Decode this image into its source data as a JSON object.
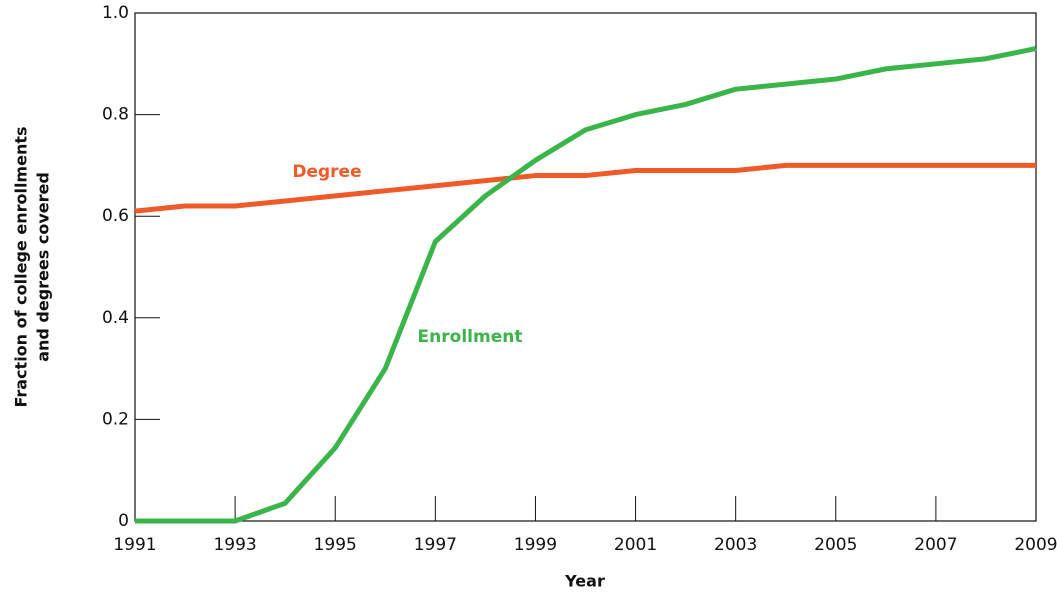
{
  "chart_data": {
    "type": "line",
    "xlabel": "Year",
    "ylabel": [
      "Fraction of college enrollments",
      "and degrees covered"
    ],
    "x": [
      1991,
      1992,
      1993,
      1994,
      1995,
      1996,
      1997,
      1998,
      1999,
      2000,
      2001,
      2002,
      2003,
      2004,
      2005,
      2006,
      2007,
      2008,
      2009
    ],
    "series": [
      {
        "name": "Degree",
        "color": "#ef5a28",
        "values": [
          0.61,
          0.62,
          0.62,
          0.63,
          0.64,
          0.65,
          0.66,
          0.67,
          0.68,
          0.68,
          0.69,
          0.69,
          0.69,
          0.7,
          0.7,
          0.7,
          0.7,
          0.7,
          0.7
        ]
      },
      {
        "name": "Enrollment",
        "color": "#3ab54a",
        "values": [
          0,
          0,
          0,
          0.035,
          0.144,
          0.3,
          0.55,
          0.64,
          0.71,
          0.77,
          0.8,
          0.82,
          0.85,
          0.86,
          0.87,
          0.89,
          0.9,
          0.91,
          0.93
        ]
      }
    ],
    "xlim": [
      1991,
      2009
    ],
    "xticks": [
      1991,
      1993,
      1995,
      1997,
      1999,
      2001,
      2003,
      2005,
      2007,
      2009
    ],
    "ylim": [
      0,
      1
    ],
    "yticks": [
      0,
      0.2,
      0.4,
      0.6,
      0.8,
      {
        "value": 1,
        "label": "1.0"
      }
    ]
  }
}
